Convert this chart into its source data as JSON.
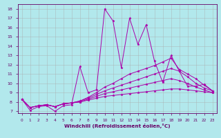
{
  "xlabel": "Windchill (Refroidissement éolien,°C)",
  "background_color": "#b2e8ec",
  "grid_color": "#aaaaaa",
  "line_color": "#aa00aa",
  "x_ticks": [
    0,
    1,
    2,
    3,
    4,
    5,
    6,
    7,
    8,
    9,
    10,
    11,
    12,
    13,
    14,
    15,
    16,
    17,
    18,
    19,
    20,
    21,
    22,
    23
  ],
  "y_ticks": [
    7,
    8,
    9,
    10,
    11,
    12,
    13,
    14,
    15,
    16,
    17,
    18
  ],
  "ylim": [
    6.8,
    18.5
  ],
  "xlim": [
    -0.5,
    23.5
  ],
  "lines": [
    [
      8.3,
      7.1,
      7.5,
      7.6,
      7.0,
      7.6,
      7.7,
      11.8,
      9.0,
      9.3,
      18.0,
      16.7,
      11.7,
      17.0,
      14.2,
      16.3,
      12.4,
      10.1,
      13.0,
      11.3,
      9.7,
      9.7,
      9.9,
      9.2
    ],
    [
      8.3,
      7.4,
      7.6,
      7.7,
      7.5,
      7.8,
      7.9,
      8.1,
      8.5,
      9.0,
      9.6,
      10.0,
      10.5,
      11.0,
      11.3,
      11.6,
      11.9,
      12.3,
      12.7,
      11.5,
      11.0,
      10.5,
      9.8,
      9.2
    ],
    [
      8.3,
      7.4,
      7.6,
      7.7,
      7.5,
      7.8,
      7.9,
      8.1,
      8.4,
      8.8,
      9.2,
      9.5,
      9.8,
      10.1,
      10.4,
      10.7,
      11.0,
      11.3,
      11.6,
      11.3,
      10.7,
      10.0,
      9.5,
      9.2
    ],
    [
      8.3,
      7.4,
      7.6,
      7.7,
      7.5,
      7.8,
      7.9,
      8.0,
      8.3,
      8.6,
      8.9,
      9.1,
      9.3,
      9.5,
      9.7,
      9.9,
      10.1,
      10.3,
      10.5,
      10.3,
      10.0,
      9.6,
      9.3,
      9.0
    ],
    [
      8.3,
      7.4,
      7.6,
      7.7,
      7.5,
      7.8,
      7.9,
      8.0,
      8.2,
      8.4,
      8.6,
      8.7,
      8.8,
      8.9,
      9.0,
      9.1,
      9.2,
      9.3,
      9.4,
      9.4,
      9.3,
      9.2,
      9.1,
      9.0
    ]
  ]
}
